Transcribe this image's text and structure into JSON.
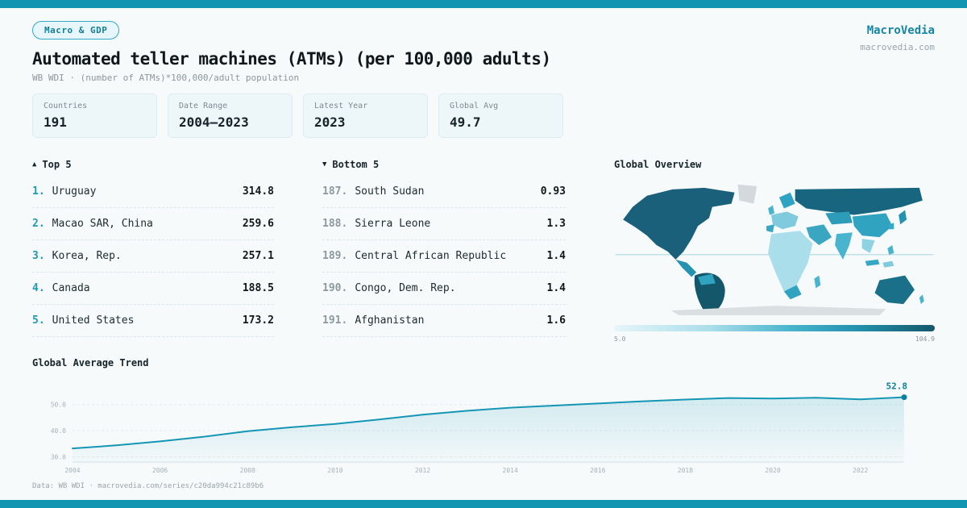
{
  "theme": {
    "accent": "#1295b0",
    "accent_dark": "#0e7e9b",
    "map_dark": "#14576b",
    "card_bg": "#edf6f9"
  },
  "header": {
    "badge": "Macro & GDP",
    "title": "Automated teller machines (ATMs) (per 100,000 adults)",
    "subtitle": "WB WDI · (number of ATMs)*100,000/adult population",
    "brand": "MacroVedia",
    "site": "macrovedia.com"
  },
  "stats": [
    {
      "label": "Countries",
      "value": "191"
    },
    {
      "label": "Date Range",
      "value": "2004—2023"
    },
    {
      "label": "Latest Year",
      "value": "2023"
    },
    {
      "label": "Global Avg",
      "value": "49.7"
    }
  ],
  "lists": {
    "top5": {
      "icon": "▲",
      "title": "Top 5",
      "items": [
        {
          "rank": "1.",
          "name": "Uruguay",
          "value": "314.8"
        },
        {
          "rank": "2.",
          "name": "Macao SAR, China",
          "value": "259.6"
        },
        {
          "rank": "3.",
          "name": "Korea, Rep.",
          "value": "257.1"
        },
        {
          "rank": "4.",
          "name": "Canada",
          "value": "188.5"
        },
        {
          "rank": "5.",
          "name": "United States",
          "value": "173.2"
        }
      ]
    },
    "bottom5": {
      "icon": "▼",
      "title": "Bottom 5",
      "items": [
        {
          "rank": "187.",
          "name": "South Sudan",
          "value": "0.93"
        },
        {
          "rank": "188.",
          "name": "Sierra Leone",
          "value": "1.3"
        },
        {
          "rank": "189.",
          "name": "Central African Republic",
          "value": "1.4"
        },
        {
          "rank": "190.",
          "name": "Congo, Dem. Rep.",
          "value": "1.4"
        },
        {
          "rank": "191.",
          "name": "Afghanistan",
          "value": "1.6"
        }
      ]
    }
  },
  "map": {
    "title": "Global Overview",
    "legend_min": "5.0",
    "legend_max": "104.9"
  },
  "trend": {
    "title": "Global Average Trend"
  },
  "footer": {
    "text": "Data: WB WDI · macrovedia.com/series/c20da994c21c89b6"
  },
  "chart_data": [
    {
      "type": "line",
      "title": "Global Average Trend",
      "xlabel": "",
      "ylabel": "",
      "x": [
        2004,
        2005,
        2006,
        2007,
        2008,
        2009,
        2010,
        2011,
        2012,
        2013,
        2014,
        2015,
        2016,
        2017,
        2018,
        2019,
        2020,
        2021,
        2022,
        2023
      ],
      "values": [
        33.2,
        34.4,
        35.9,
        37.7,
        39.8,
        41.3,
        42.6,
        44.3,
        46.1,
        47.6,
        48.8,
        49.6,
        50.4,
        51.2,
        51.9,
        52.5,
        52.3,
        52.6,
        52.0,
        52.8
      ],
      "ylim": [
        28,
        57
      ],
      "gridlines": [
        30,
        40,
        50
      ],
      "gridline_labels": [
        "30.0",
        "40.0",
        "50.0"
      ],
      "xticks": [
        2004,
        2006,
        2008,
        2010,
        2012,
        2014,
        2016,
        2018,
        2020,
        2022
      ],
      "end_label": "52.8",
      "line_color": "#1596b4",
      "legend_position": "none",
      "grid": true
    },
    {
      "type": "heatmap",
      "subtype": "world-choropleth",
      "title": "Global Overview",
      "legend_range": [
        5.0,
        104.9
      ],
      "legend_min_label": "5.0",
      "legend_max_label": "104.9"
    }
  ]
}
